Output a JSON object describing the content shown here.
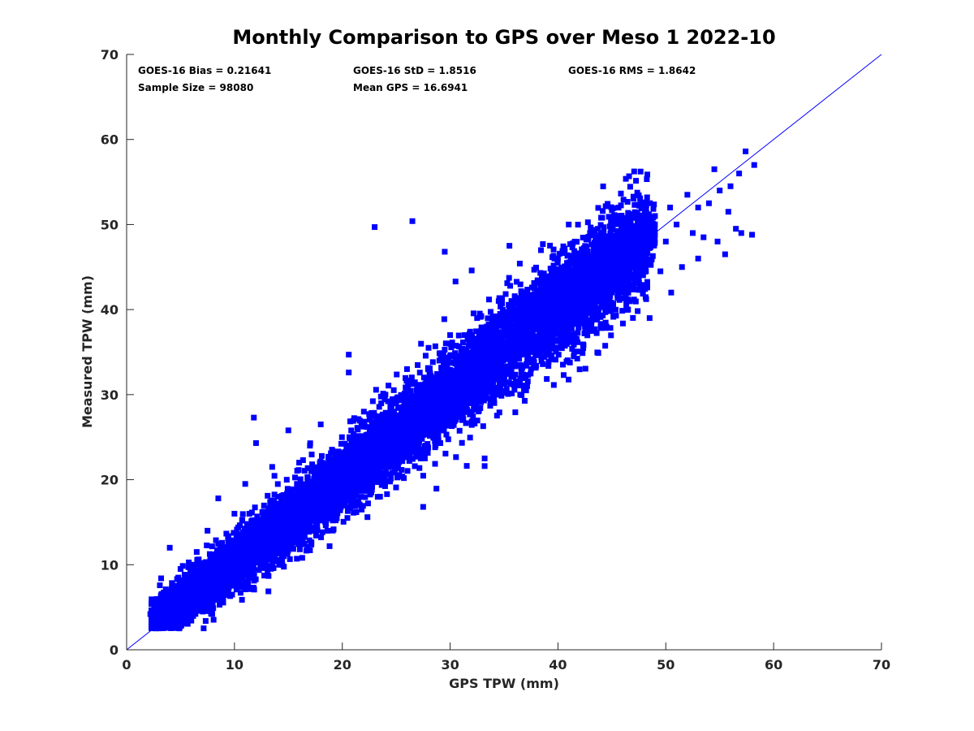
{
  "chart_data": {
    "type": "scatter",
    "title": "Monthly Comparison to GPS over Meso 1 2022-10",
    "xlabel": "GPS TPW (mm)",
    "ylabel": "Measured TPW (mm)",
    "xlim": [
      0,
      70
    ],
    "ylim": [
      0,
      70
    ],
    "xticks": [
      "0",
      "10",
      "20",
      "30",
      "40",
      "50",
      "60",
      "70"
    ],
    "yticks": [
      "0",
      "10",
      "20",
      "30",
      "40",
      "50",
      "60",
      "70"
    ],
    "grid": false,
    "marker_color": "#0000ff",
    "line_color": "#0000ff",
    "reference_line": {
      "x": [
        0,
        70
      ],
      "y": [
        0,
        70
      ]
    },
    "stats": [
      {
        "label": "GOES-16 Bias = 0.21641"
      },
      {
        "label": "GOES-16 StD = 1.8516"
      },
      {
        "label": "GOES-16 RMS = 1.8642"
      },
      {
        "label": "Sample Size = 98080"
      },
      {
        "label": "Mean GPS = 16.6941"
      }
    ],
    "points": [
      [
        2.2,
        4.2
      ],
      [
        2.3,
        5.4
      ],
      [
        3.0,
        2.8
      ],
      [
        3.2,
        8.4
      ],
      [
        4.0,
        12.0
      ],
      [
        4.2,
        3.0
      ],
      [
        5.0,
        9.5
      ],
      [
        5.5,
        7.0
      ],
      [
        6.0,
        5.5
      ],
      [
        6.5,
        11.5
      ],
      [
        7.0,
        9.0
      ],
      [
        7.5,
        14.0
      ],
      [
        8.0,
        8.5
      ],
      [
        8.5,
        17.8
      ],
      [
        9.0,
        12.0
      ],
      [
        9.5,
        10.0
      ],
      [
        10.0,
        16.0
      ],
      [
        10.5,
        13.0
      ],
      [
        11.0,
        19.5
      ],
      [
        11.8,
        27.3
      ],
      [
        12.0,
        24.3
      ],
      [
        12.5,
        15.0
      ],
      [
        13.0,
        11.5
      ],
      [
        13.5,
        21.5
      ],
      [
        14.0,
        18.0
      ],
      [
        14.5,
        13.0
      ],
      [
        15.0,
        25.8
      ],
      [
        15.5,
        17.0
      ],
      [
        16.0,
        22.0
      ],
      [
        16.5,
        14.0
      ],
      [
        17.0,
        24.0
      ],
      [
        17.5,
        19.0
      ],
      [
        18.0,
        26.5
      ],
      [
        18.5,
        20.0
      ],
      [
        19.0,
        16.0
      ],
      [
        19.5,
        23.0
      ],
      [
        20.0,
        20.5
      ],
      [
        20.6,
        34.7
      ],
      [
        20.6,
        32.6
      ],
      [
        21.0,
        25.0
      ],
      [
        21.5,
        17.5
      ],
      [
        22.0,
        28.0
      ],
      [
        22.5,
        22.0
      ],
      [
        23.0,
        27.5
      ],
      [
        23.5,
        18.0
      ],
      [
        24.0,
        30.0
      ],
      [
        24.5,
        24.5
      ],
      [
        25.0,
        29.0
      ],
      [
        25.5,
        23.0
      ],
      [
        26.0,
        33.0
      ],
      [
        26.5,
        27.0
      ],
      [
        27.0,
        31.0
      ],
      [
        27.5,
        16.8
      ],
      [
        27.8,
        23.6
      ],
      [
        28.0,
        35.5
      ],
      [
        28.5,
        29.0
      ],
      [
        29.0,
        34.0
      ],
      [
        29.5,
        27.5
      ],
      [
        30.0,
        37.0
      ],
      [
        30.5,
        43.3
      ],
      [
        31.0,
        31.0
      ],
      [
        31.5,
        35.0
      ],
      [
        32.0,
        28.0
      ],
      [
        32.5,
        39.0
      ],
      [
        33.0,
        33.0
      ],
      [
        33.2,
        22.5
      ],
      [
        33.2,
        21.6
      ],
      [
        34.0,
        30.5
      ],
      [
        34.5,
        41.0
      ],
      [
        35.0,
        35.0
      ],
      [
        36.0,
        37.5
      ],
      [
        36.5,
        30.0
      ],
      [
        37.0,
        39.5
      ],
      [
        37.5,
        33.0
      ],
      [
        38.0,
        40.0
      ],
      [
        38.6,
        47.7
      ],
      [
        39.0,
        36.5
      ],
      [
        39.5,
        42.0
      ],
      [
        40.0,
        38.5
      ],
      [
        40.5,
        44.0
      ],
      [
        41.0,
        40.0
      ],
      [
        41.5,
        35.0
      ],
      [
        42.0,
        43.5
      ],
      [
        42.5,
        39.0
      ],
      [
        43.0,
        46.0
      ],
      [
        43.5,
        41.0
      ],
      [
        44.0,
        44.5
      ],
      [
        44.5,
        38.0
      ],
      [
        45.0,
        47.0
      ],
      [
        45.5,
        42.5
      ],
      [
        46.0,
        45.0
      ],
      [
        46.5,
        40.0
      ],
      [
        47.0,
        49.0
      ],
      [
        47.5,
        43.5
      ],
      [
        48.0,
        46.0
      ],
      [
        48.5,
        39.0
      ],
      [
        49.0,
        51.0
      ],
      [
        49.5,
        44.5
      ],
      [
        50.0,
        48.0
      ],
      [
        50.5,
        42.0
      ],
      [
        51.0,
        50.0
      ],
      [
        51.5,
        45.0
      ],
      [
        52.0,
        53.5
      ],
      [
        52.5,
        49.0
      ],
      [
        53.0,
        52.0
      ],
      [
        53.5,
        48.5
      ],
      [
        54.0,
        52.5
      ],
      [
        54.5,
        56.5
      ],
      [
        55.0,
        54.0
      ],
      [
        55.5,
        46.5
      ],
      [
        56.0,
        54.5
      ],
      [
        56.5,
        49.5
      ],
      [
        57.0,
        49.0
      ],
      [
        57.4,
        58.6
      ],
      [
        58.2,
        57.0
      ],
      [
        58.0,
        48.8
      ],
      [
        56.8,
        56.0
      ],
      [
        55.8,
        51.5
      ],
      [
        54.8,
        48.0
      ],
      [
        53.0,
        46.0
      ],
      [
        26.5,
        50.4
      ],
      [
        23.0,
        49.7
      ],
      [
        29.5,
        46.8
      ],
      [
        32.0,
        44.6
      ],
      [
        35.5,
        47.5
      ],
      [
        46.0,
        48.8
      ],
      [
        44.0,
        50.8
      ],
      [
        41.0,
        50.0
      ],
      [
        48.5,
        50.8
      ],
      [
        50.4,
        52.0
      ]
    ]
  }
}
